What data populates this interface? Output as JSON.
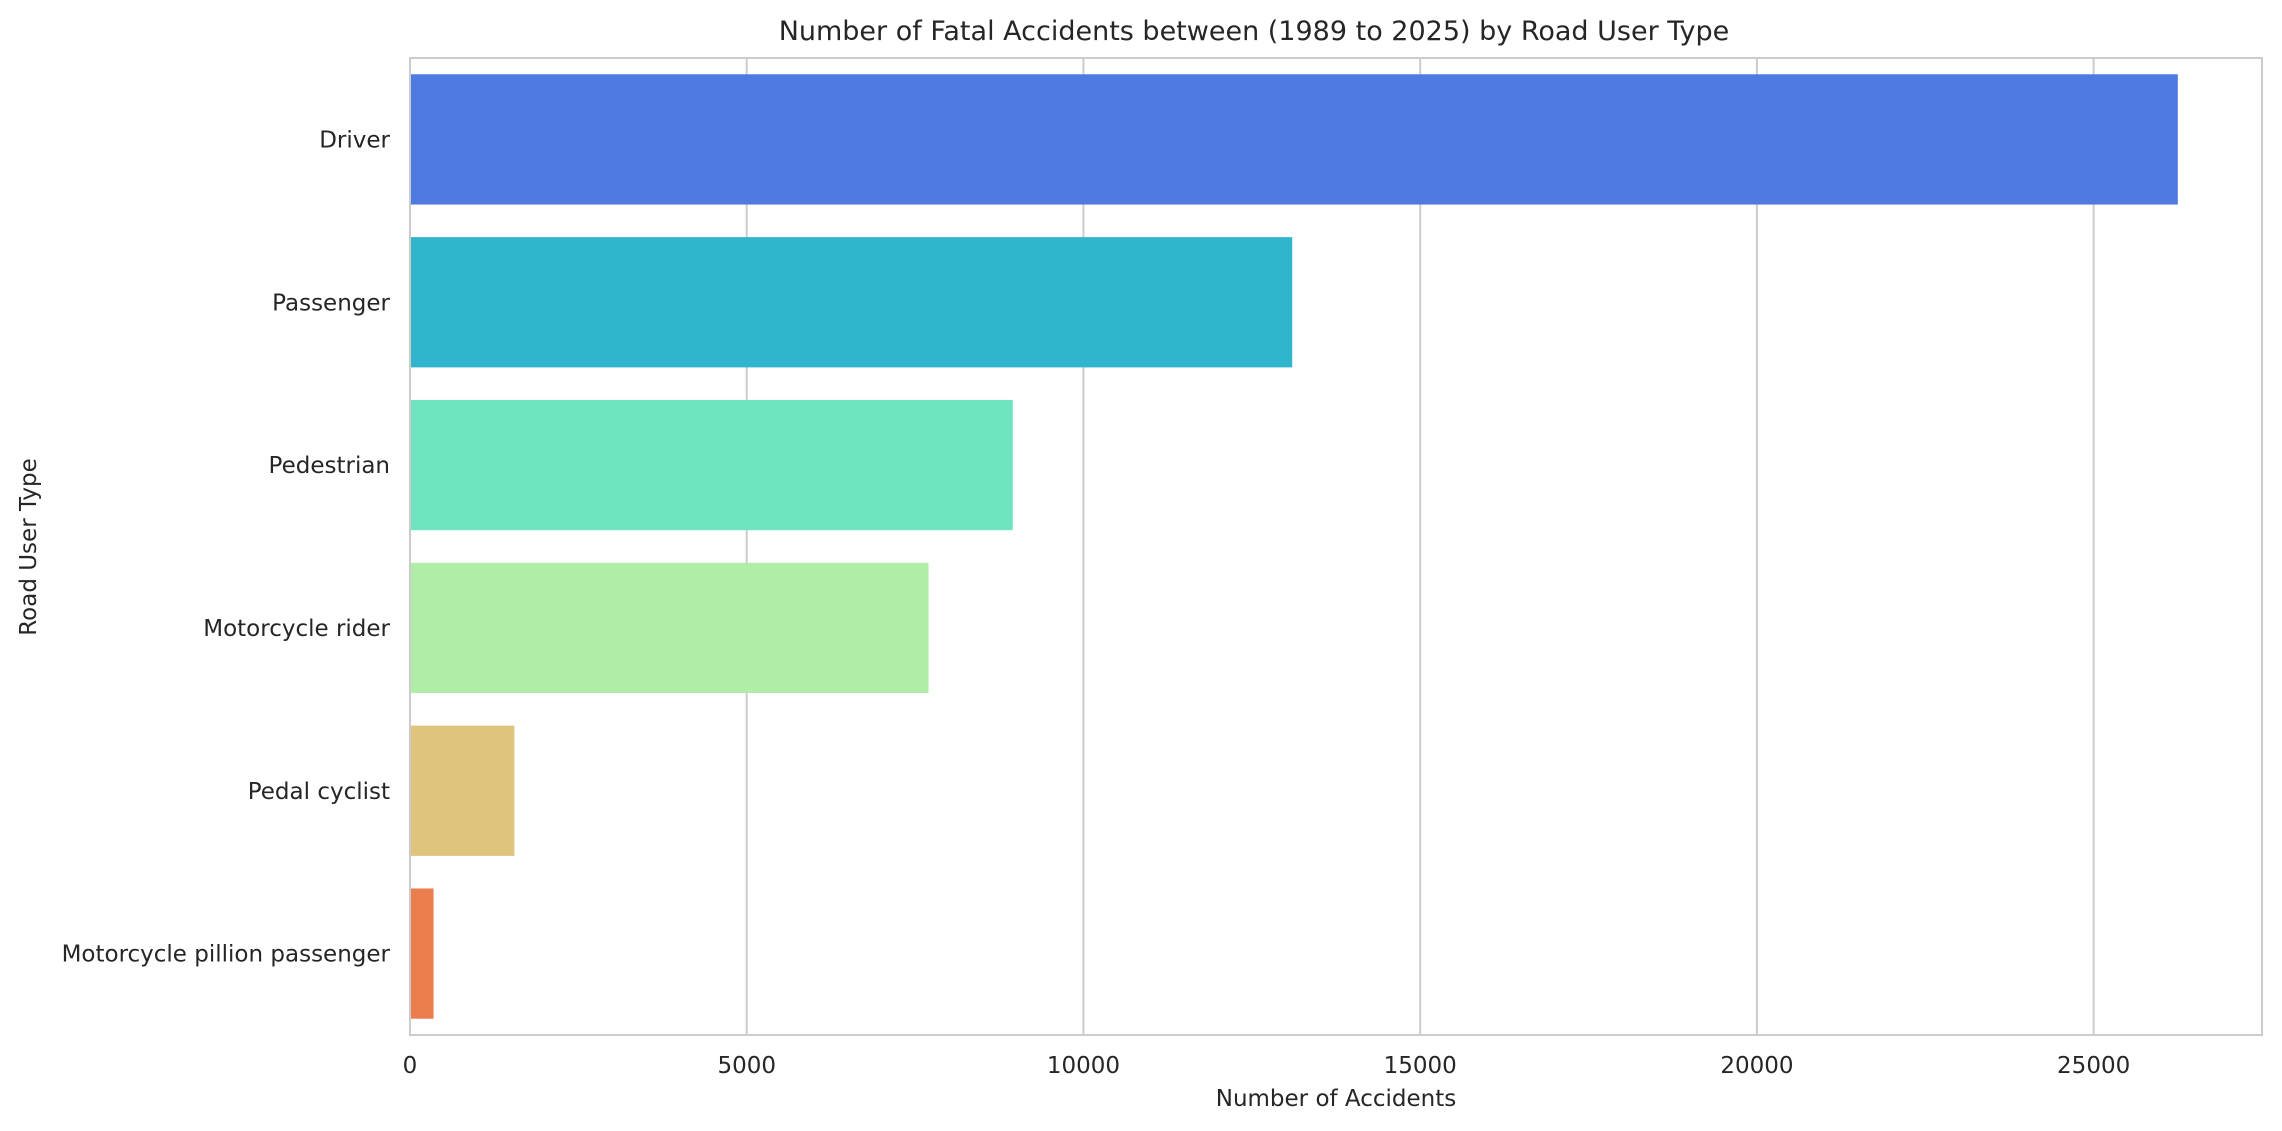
{
  "chart_data": {
    "type": "bar",
    "orientation": "horizontal",
    "title": "Number of Fatal Accidents between (1989 to 2025) by Road User Type",
    "xlabel": "Number of Accidents",
    "ylabel": "Road User Type",
    "categories": [
      "Driver",
      "Passenger",
      "Pedestrian",
      "Motorcycle rider",
      "Pedal cyclist",
      "Motorcycle pillion passenger"
    ],
    "values": [
      26250,
      13100,
      8950,
      7700,
      1550,
      350
    ],
    "colors": [
      "#4f7ae2",
      "#2fb5cc",
      "#6fe4c1",
      "#b0eea8",
      "#dfc47d",
      "#ec7d4f"
    ],
    "xlim": [
      0,
      27500
    ],
    "xticks": [
      0,
      5000,
      10000,
      15000,
      20000,
      25000
    ],
    "grid": "x",
    "legend": "none"
  }
}
